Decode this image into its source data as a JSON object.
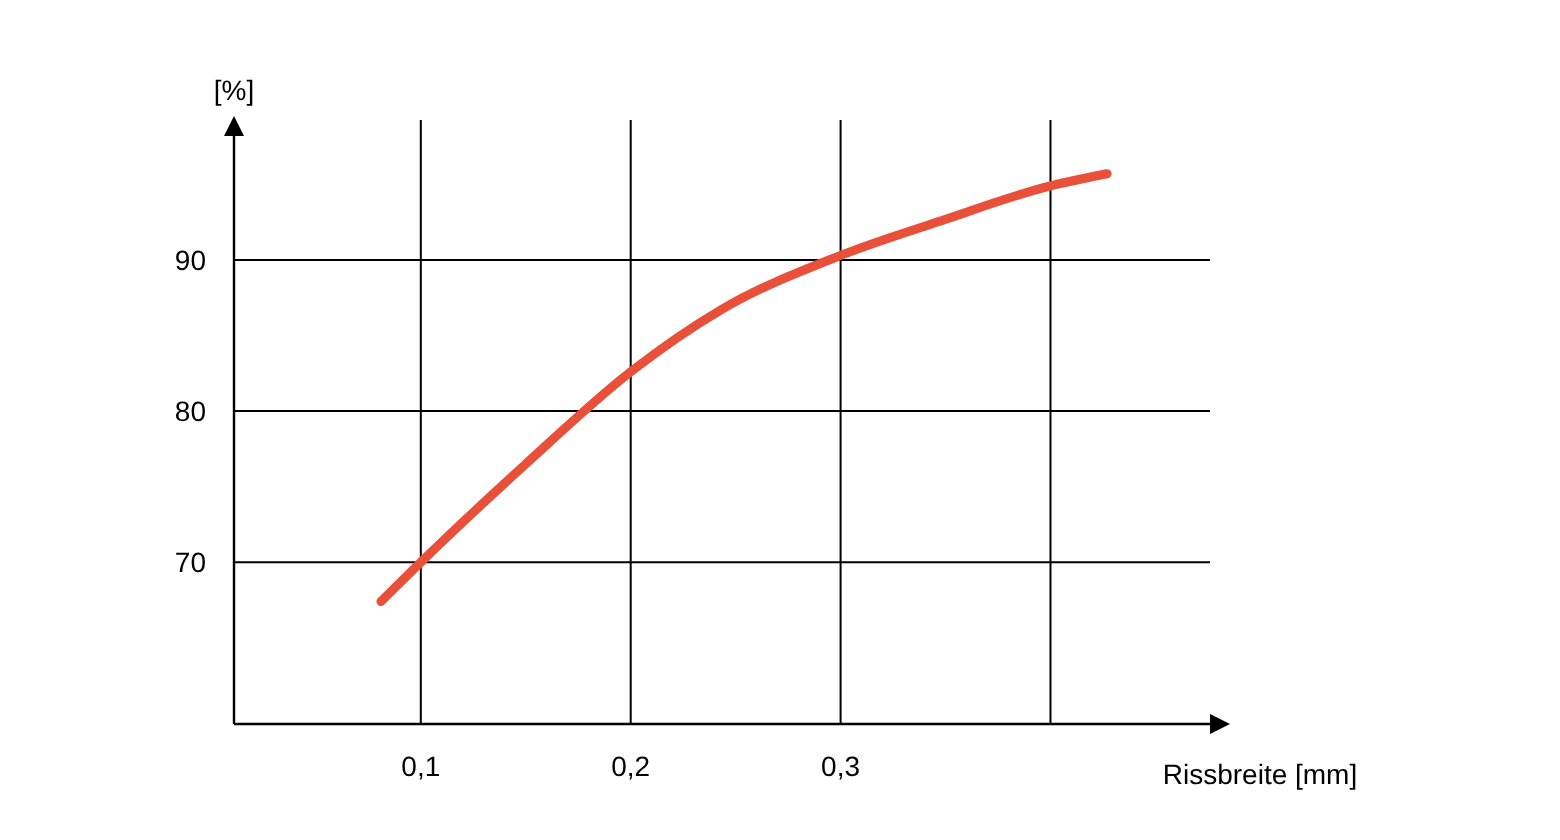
{
  "chart_data": {
    "type": "line",
    "xlabel": "Rissbreite [mm]",
    "ylabel": "[%]",
    "x": [
      0.081,
      0.1,
      0.15,
      0.2,
      0.243,
      0.3,
      0.348,
      0.4,
      0.427
    ],
    "series": [
      {
        "color": "#e8503a",
        "values": [
          67.4,
          70,
          76.5,
          82.6,
          86.7,
          90.3,
          92.6,
          94.9,
          95.7
        ]
      }
    ],
    "xlim": [
      0.011,
      0.476
    ],
    "ylim": [
      59.3,
      98.2
    ],
    "xticks": [
      {
        "value": 0.1,
        "label": "0,1"
      },
      {
        "value": 0.2,
        "label": "0,2"
      },
      {
        "value": 0.3,
        "label": "0,3"
      },
      {
        "value": 0.4,
        "label": null
      }
    ],
    "yticks": [
      70,
      80,
      90
    ],
    "grid": true,
    "marker": "none",
    "line_style": "solid"
  }
}
